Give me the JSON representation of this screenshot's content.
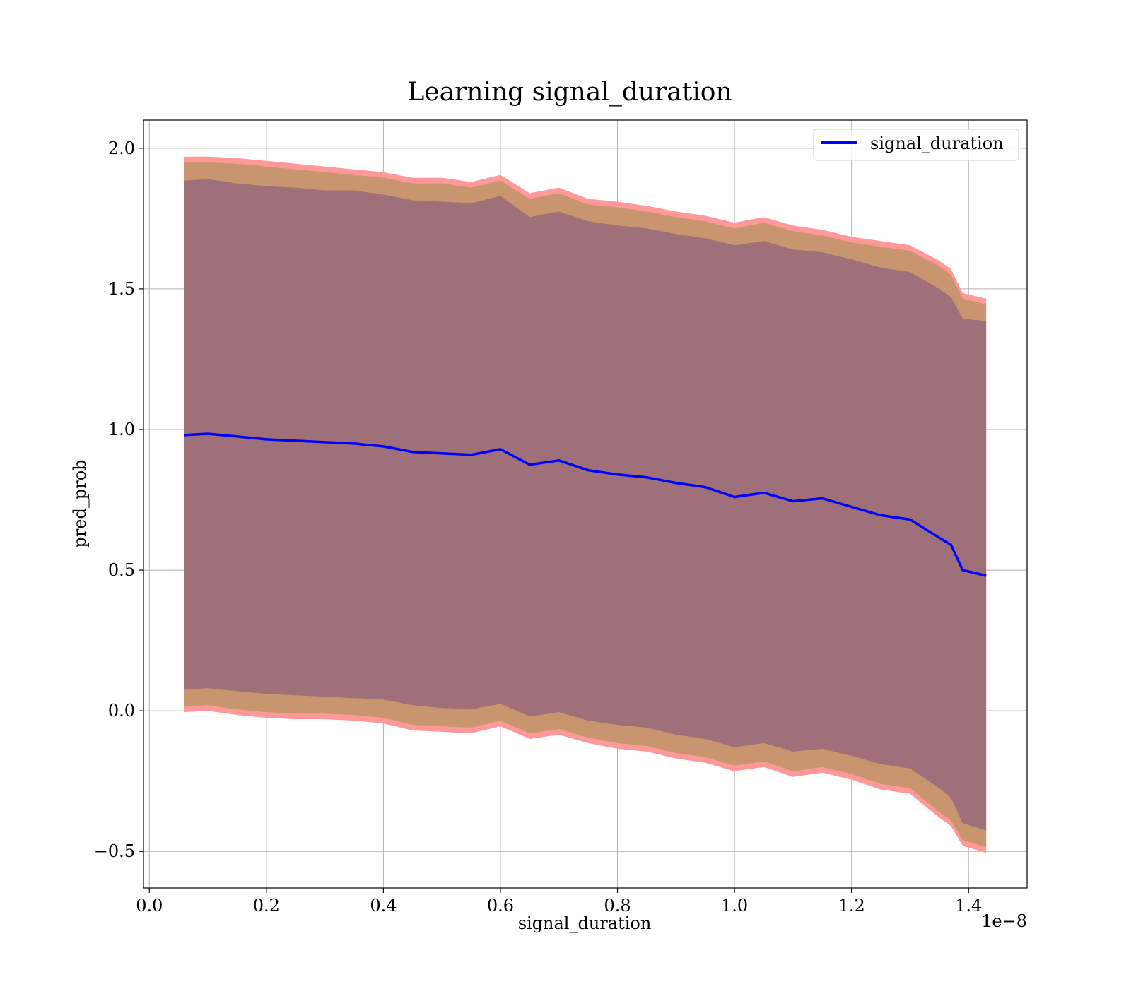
{
  "chart_data": {
    "type": "line",
    "title": "Learning signal_duration",
    "xlabel": "signal_duration",
    "ylabel": "pred_prob",
    "x_offset_label": "1e−8",
    "xlim": [
      -0.01,
      1.5
    ],
    "ylim": [
      -0.63,
      2.1
    ],
    "x_ticks": [
      0.0,
      0.2,
      0.4,
      0.6,
      0.8,
      1.0,
      1.2,
      1.4
    ],
    "x_tick_labels": [
      "0.0",
      "0.2",
      "0.4",
      "0.6",
      "0.8",
      "1.0",
      "1.2",
      "1.4"
    ],
    "y_ticks": [
      -0.5,
      0.0,
      0.5,
      1.0,
      1.5,
      2.0
    ],
    "y_tick_labels": [
      "−0.5",
      "0.0",
      "0.5",
      "1.0",
      "1.5",
      "2.0"
    ],
    "grid": true,
    "legend": {
      "position": "top-right",
      "entries": [
        "signal_duration"
      ]
    },
    "colors": {
      "line": "#0000ff",
      "outer_band": "#ff9999",
      "middle_band": "#c8956e",
      "inner_band": "#a0707a",
      "grid": "#b0b0b0"
    },
    "series": [
      {
        "name": "signal_duration",
        "x": [
          0.06,
          0.1,
          0.15,
          0.2,
          0.25,
          0.3,
          0.35,
          0.4,
          0.45,
          0.5,
          0.55,
          0.6,
          0.65,
          0.7,
          0.75,
          0.8,
          0.85,
          0.9,
          0.95,
          1.0,
          1.05,
          1.1,
          1.15,
          1.2,
          1.25,
          1.3,
          1.35,
          1.37,
          1.39,
          1.43
        ],
        "y": [
          0.98,
          0.985,
          0.975,
          0.965,
          0.96,
          0.955,
          0.95,
          0.94,
          0.92,
          0.915,
          0.91,
          0.93,
          0.875,
          0.89,
          0.855,
          0.84,
          0.83,
          0.81,
          0.795,
          0.76,
          0.775,
          0.745,
          0.755,
          0.725,
          0.695,
          0.68,
          0.615,
          0.59,
          0.5,
          0.48
        ],
        "band_outer_upper": [
          1.97,
          1.97,
          1.965,
          1.955,
          1.945,
          1.935,
          1.925,
          1.915,
          1.895,
          1.895,
          1.88,
          1.905,
          1.84,
          1.86,
          1.82,
          1.81,
          1.795,
          1.775,
          1.76,
          1.735,
          1.755,
          1.725,
          1.71,
          1.685,
          1.67,
          1.655,
          1.6,
          1.57,
          1.485,
          1.465
        ],
        "band_outer_lower": [
          -0.005,
          0.0,
          -0.015,
          -0.025,
          -0.03,
          -0.03,
          -0.035,
          -0.045,
          -0.07,
          -0.075,
          -0.08,
          -0.055,
          -0.1,
          -0.085,
          -0.115,
          -0.135,
          -0.145,
          -0.17,
          -0.185,
          -0.215,
          -0.2,
          -0.235,
          -0.22,
          -0.245,
          -0.28,
          -0.295,
          -0.38,
          -0.41,
          -0.48,
          -0.505
        ],
        "band_inner_upper": [
          1.885,
          1.89,
          1.875,
          1.865,
          1.86,
          1.85,
          1.85,
          1.835,
          1.815,
          1.81,
          1.805,
          1.83,
          1.755,
          1.775,
          1.74,
          1.725,
          1.715,
          1.695,
          1.68,
          1.655,
          1.67,
          1.64,
          1.63,
          1.605,
          1.575,
          1.56,
          1.5,
          1.47,
          1.395,
          1.385
        ],
        "band_inner_lower": [
          0.075,
          0.08,
          0.07,
          0.06,
          0.055,
          0.05,
          0.045,
          0.04,
          0.02,
          0.01,
          0.005,
          0.025,
          -0.02,
          -0.005,
          -0.035,
          -0.05,
          -0.06,
          -0.085,
          -0.1,
          -0.13,
          -0.115,
          -0.145,
          -0.135,
          -0.16,
          -0.19,
          -0.205,
          -0.275,
          -0.31,
          -0.4,
          -0.425
        ]
      }
    ]
  }
}
